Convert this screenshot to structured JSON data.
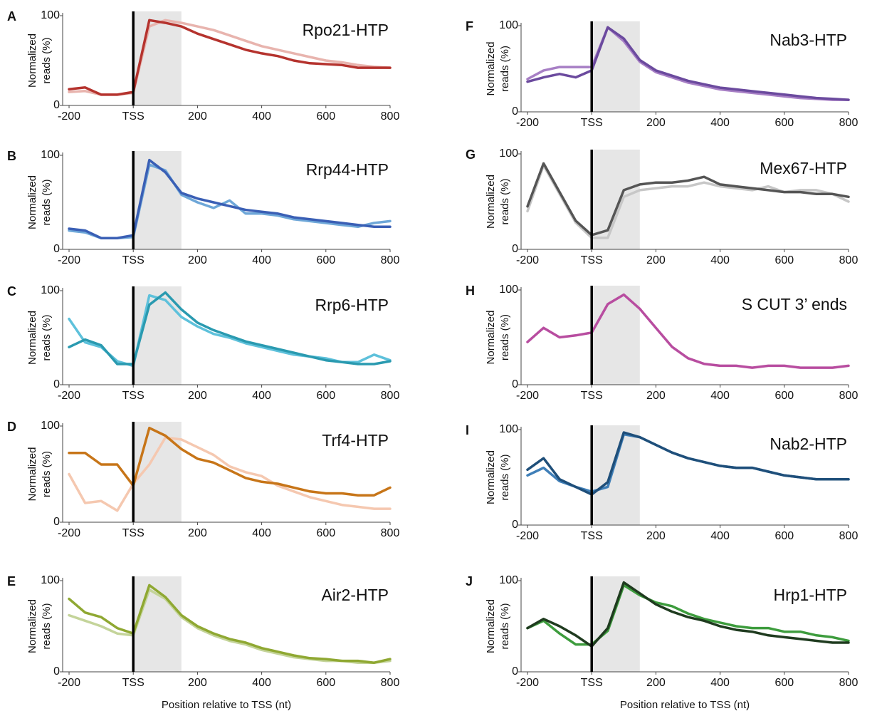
{
  "chart_data": [
    {
      "type": "line",
      "label": "A",
      "title": "Rpo21-HTP",
      "ylabel": [
        "Normalized",
        "reads (%)"
      ],
      "x": [
        -200,
        -150,
        -100,
        -50,
        0,
        50,
        100,
        150,
        200,
        250,
        300,
        350,
        400,
        450,
        500,
        550,
        600,
        650,
        700,
        750,
        800
      ],
      "series": [
        {
          "color": "#e8b4ae",
          "values": [
            15,
            16,
            12,
            12,
            14,
            88,
            95,
            92,
            88,
            84,
            78,
            72,
            66,
            62,
            58,
            54,
            50,
            48,
            45,
            43,
            42
          ]
        },
        {
          "color": "#b5332e",
          "values": [
            18,
            20,
            12,
            12,
            15,
            95,
            92,
            88,
            80,
            74,
            68,
            62,
            58,
            55,
            50,
            47,
            46,
            45,
            42,
            42,
            42
          ]
        }
      ],
      "xlim": [
        -220,
        800
      ],
      "ylim": [
        0,
        100
      ],
      "xticks": [
        -200,
        {
          "value": 0,
          "label": "TSS"
        },
        200,
        400,
        600,
        800
      ],
      "yticks": [
        0,
        100
      ],
      "shaded_region": [
        0,
        150
      ],
      "tss_line": 0
    },
    {
      "type": "line",
      "label": "B",
      "title": "Rrp44-HTP",
      "ylabel": [
        "Normalized",
        "reads (%)"
      ],
      "x": [
        -200,
        -150,
        -100,
        -50,
        0,
        50,
        100,
        150,
        200,
        250,
        300,
        350,
        400,
        450,
        500,
        550,
        600,
        650,
        700,
        750,
        800
      ],
      "series": [
        {
          "color": "#6ea7d8",
          "values": [
            20,
            18,
            12,
            12,
            13,
            90,
            84,
            58,
            50,
            44,
            52,
            38,
            38,
            36,
            32,
            30,
            28,
            26,
            24,
            28,
            30
          ]
        },
        {
          "color": "#3a5fb5",
          "values": [
            22,
            20,
            12,
            12,
            15,
            95,
            82,
            60,
            54,
            50,
            46,
            42,
            40,
            38,
            34,
            32,
            30,
            28,
            26,
            24,
            24
          ]
        }
      ],
      "xlim": [
        -220,
        800
      ],
      "ylim": [
        0,
        100
      ],
      "xticks": [
        -200,
        {
          "value": 0,
          "label": "TSS"
        },
        200,
        400,
        600,
        800
      ],
      "yticks": [
        0,
        100
      ],
      "shaded_region": [
        0,
        150
      ],
      "tss_line": 0
    },
    {
      "type": "line",
      "label": "C",
      "title": "Rrp6-HTP",
      "ylabel": [
        "Normalized",
        "reads (%)"
      ],
      "x": [
        -200,
        -150,
        -100,
        -50,
        0,
        50,
        100,
        150,
        200,
        250,
        300,
        350,
        400,
        450,
        500,
        550,
        600,
        650,
        700,
        750,
        800
      ],
      "series": [
        {
          "color": "#5ec1db",
          "values": [
            70,
            45,
            40,
            25,
            20,
            95,
            90,
            72,
            62,
            54,
            50,
            44,
            40,
            36,
            32,
            30,
            28,
            24,
            24,
            32,
            26
          ]
        },
        {
          "color": "#2a9ab0",
          "values": [
            40,
            48,
            42,
            22,
            22,
            85,
            98,
            80,
            66,
            58,
            52,
            46,
            42,
            38,
            34,
            30,
            26,
            24,
            22,
            22,
            25
          ]
        }
      ],
      "xlim": [
        -220,
        800
      ],
      "ylim": [
        0,
        100
      ],
      "xticks": [
        -200,
        {
          "value": 0,
          "label": "TSS"
        },
        200,
        400,
        600,
        800
      ],
      "yticks": [
        0,
        100
      ],
      "shaded_region": [
        0,
        150
      ],
      "tss_line": 0
    },
    {
      "type": "line",
      "label": "D",
      "title": "Trf4-HTP",
      "ylabel": [
        "Normalized",
        "reads (%)"
      ],
      "x": [
        -200,
        -150,
        -100,
        -50,
        0,
        50,
        100,
        150,
        200,
        250,
        300,
        350,
        400,
        450,
        500,
        550,
        600,
        650,
        700,
        750,
        800
      ],
      "series": [
        {
          "color": "#f5c8b0",
          "values": [
            50,
            20,
            22,
            12,
            40,
            60,
            88,
            86,
            78,
            70,
            58,
            52,
            48,
            38,
            32,
            26,
            22,
            18,
            16,
            14,
            14
          ]
        },
        {
          "color": "#c77518",
          "values": [
            72,
            72,
            60,
            60,
            38,
            98,
            90,
            76,
            66,
            62,
            54,
            46,
            42,
            40,
            36,
            32,
            30,
            30,
            28,
            28,
            36
          ]
        }
      ],
      "xlim": [
        -220,
        800
      ],
      "ylim": [
        0,
        100
      ],
      "xticks": [
        -200,
        {
          "value": 0,
          "label": "TSS"
        },
        200,
        400,
        600,
        800
      ],
      "yticks": [
        0,
        100
      ],
      "shaded_region": [
        0,
        150
      ],
      "tss_line": 0
    },
    {
      "type": "line",
      "label": "E",
      "title": "Air2-HTP",
      "ylabel": [
        "Normalized",
        "reads (%)"
      ],
      "xlabel": "Position relative to TSS (nt)",
      "x": [
        -200,
        -150,
        -100,
        -50,
        0,
        50,
        100,
        150,
        200,
        250,
        300,
        350,
        400,
        450,
        500,
        550,
        600,
        650,
        700,
        750,
        800
      ],
      "series": [
        {
          "color": "#c4d49a",
          "values": [
            62,
            56,
            50,
            42,
            40,
            90,
            80,
            60,
            48,
            40,
            34,
            30,
            24,
            20,
            16,
            14,
            12,
            12,
            10,
            10,
            12
          ]
        },
        {
          "color": "#8fa832",
          "values": [
            80,
            65,
            60,
            48,
            42,
            95,
            82,
            62,
            50,
            42,
            36,
            32,
            26,
            22,
            18,
            15,
            14,
            12,
            12,
            10,
            14
          ]
        }
      ],
      "xlim": [
        -220,
        800
      ],
      "ylim": [
        0,
        100
      ],
      "xticks": [
        -200,
        {
          "value": 0,
          "label": "TSS"
        },
        200,
        400,
        600,
        800
      ],
      "yticks": [
        0,
        100
      ],
      "shaded_region": [
        0,
        150
      ],
      "tss_line": 0
    },
    {
      "type": "line",
      "label": "F",
      "title": "Nab3-HTP",
      "ylabel": [
        "Normalized",
        "reads (%)"
      ],
      "x": [
        -200,
        -150,
        -100,
        -50,
        0,
        50,
        100,
        150,
        200,
        250,
        300,
        350,
        400,
        450,
        500,
        550,
        600,
        650,
        700,
        750,
        800
      ],
      "series": [
        {
          "color": "#a77fc5",
          "values": [
            38,
            48,
            52,
            52,
            52,
            98,
            82,
            58,
            46,
            40,
            34,
            30,
            26,
            24,
            22,
            20,
            18,
            16,
            15,
            14,
            14
          ]
        },
        {
          "color": "#6b4a9e",
          "values": [
            35,
            40,
            44,
            40,
            48,
            98,
            85,
            60,
            48,
            42,
            36,
            32,
            28,
            26,
            24,
            22,
            20,
            18,
            16,
            15,
            14
          ]
        }
      ],
      "xlim": [
        -220,
        800
      ],
      "ylim": [
        0,
        100
      ],
      "xticks": [
        -200,
        {
          "value": 0,
          "label": "TSS"
        },
        200,
        400,
        600,
        800
      ],
      "yticks": [
        0,
        100
      ],
      "shaded_region": [
        0,
        150
      ],
      "tss_line": 0
    },
    {
      "type": "line",
      "label": "G",
      "title": "Mex67-HTP",
      "ylabel": [
        "Normalized",
        "reads (%)"
      ],
      "x": [
        -200,
        -150,
        -100,
        -50,
        0,
        50,
        100,
        150,
        200,
        250,
        300,
        350,
        400,
        450,
        500,
        550,
        600,
        650,
        700,
        750,
        800
      ],
      "series": [
        {
          "color": "#c7c7c7",
          "values": [
            40,
            88,
            58,
            28,
            12,
            12,
            55,
            62,
            64,
            66,
            66,
            70,
            66,
            64,
            62,
            66,
            60,
            62,
            62,
            58,
            50
          ]
        },
        {
          "color": "#555555",
          "values": [
            45,
            90,
            60,
            30,
            15,
            20,
            62,
            68,
            70,
            70,
            72,
            76,
            68,
            66,
            64,
            62,
            60,
            60,
            58,
            58,
            55
          ]
        }
      ],
      "xlim": [
        -220,
        800
      ],
      "ylim": [
        0,
        100
      ],
      "xticks": [
        -200,
        {
          "value": 0,
          "label": "TSS"
        },
        200,
        400,
        600,
        800
      ],
      "yticks": [
        0,
        100
      ],
      "shaded_region": [
        0,
        150
      ],
      "tss_line": 0
    },
    {
      "type": "line",
      "label": "H",
      "title": "S CUT 3’ ends",
      "ylabel": [
        "Normalized",
        "reads (%)"
      ],
      "x": [
        -200,
        -150,
        -100,
        -50,
        0,
        50,
        100,
        150,
        200,
        250,
        300,
        350,
        400,
        450,
        500,
        550,
        600,
        650,
        700,
        750,
        800
      ],
      "series": [
        {
          "color": "#b84da0",
          "values": [
            45,
            60,
            50,
            52,
            55,
            85,
            95,
            80,
            60,
            40,
            28,
            22,
            20,
            20,
            18,
            20,
            20,
            18,
            18,
            18,
            20
          ]
        }
      ],
      "xlim": [
        -220,
        800
      ],
      "ylim": [
        0,
        100
      ],
      "xticks": [
        -200,
        {
          "value": 0,
          "label": "TSS"
        },
        200,
        400,
        600,
        800
      ],
      "yticks": [
        0,
        100
      ],
      "shaded_region": [
        0,
        150
      ],
      "tss_line": 0
    },
    {
      "type": "line",
      "label": "I",
      "title": "Nab2-HTP",
      "ylabel": [
        "Normalized",
        "reads (%)"
      ],
      "x": [
        -200,
        -150,
        -100,
        -50,
        0,
        50,
        100,
        150,
        200,
        250,
        300,
        350,
        400,
        450,
        500,
        550,
        600,
        650,
        700,
        750,
        800
      ],
      "series": [
        {
          "color": "#3f7fb8",
          "values": [
            52,
            60,
            46,
            40,
            35,
            40,
            95,
            92,
            84,
            76,
            70,
            66,
            62,
            60,
            60,
            56,
            52,
            50,
            48,
            48,
            48
          ]
        },
        {
          "color": "#1f4f7a",
          "values": [
            58,
            70,
            48,
            40,
            32,
            45,
            97,
            92,
            84,
            76,
            70,
            66,
            62,
            60,
            60,
            56,
            52,
            50,
            48,
            48,
            48
          ]
        }
      ],
      "xlim": [
        -220,
        800
      ],
      "ylim": [
        0,
        100
      ],
      "xticks": [
        -200,
        {
          "value": 0,
          "label": "TSS"
        },
        200,
        400,
        600,
        800
      ],
      "yticks": [
        0,
        100
      ],
      "shaded_region": [
        0,
        150
      ],
      "tss_line": 0
    },
    {
      "type": "line",
      "label": "J",
      "title": "Hrp1-HTP",
      "ylabel": [
        "Normalized",
        "reads (%)"
      ],
      "xlabel": "Position relative to TSS (nt)",
      "x": [
        -200,
        -150,
        -100,
        -50,
        0,
        50,
        100,
        150,
        200,
        250,
        300,
        350,
        400,
        450,
        500,
        550,
        600,
        650,
        700,
        750,
        800
      ],
      "series": [
        {
          "color": "#3d9c3d",
          "values": [
            48,
            56,
            42,
            30,
            30,
            45,
            95,
            84,
            76,
            72,
            64,
            58,
            54,
            50,
            48,
            48,
            44,
            44,
            40,
            38,
            34
          ]
        },
        {
          "color": "#1f3b1f",
          "values": [
            48,
            58,
            50,
            40,
            28,
            48,
            98,
            86,
            74,
            66,
            60,
            56,
            50,
            46,
            44,
            40,
            38,
            36,
            34,
            32,
            32
          ]
        }
      ],
      "xlim": [
        -220,
        800
      ],
      "ylim": [
        0,
        100
      ],
      "xticks": [
        -200,
        {
          "value": 0,
          "label": "TSS"
        },
        200,
        400,
        600,
        800
      ],
      "yticks": [
        0,
        100
      ],
      "shaded_region": [
        0,
        150
      ],
      "tss_line": 0
    }
  ]
}
